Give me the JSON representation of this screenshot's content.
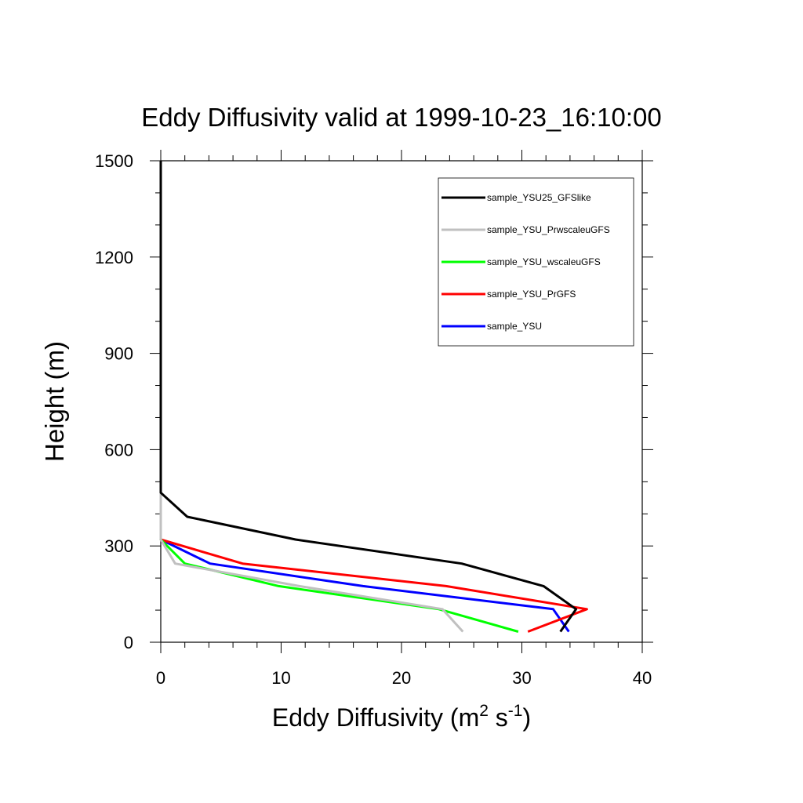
{
  "chart_data": {
    "type": "line",
    "title": "Eddy Diffusivity valid at 1999-10-23_16:10:00",
    "xlabel": {
      "base": "Eddy Diffusivity (m",
      "sup1": "2",
      "mid": " s",
      "sup2": "-1",
      "end": ")"
    },
    "ylabel": "Height (m)",
    "xlim": [
      0,
      40
    ],
    "ylim": [
      0,
      1500
    ],
    "xticks": [
      0,
      10,
      20,
      30,
      40
    ],
    "yticks": [
      0,
      300,
      600,
      900,
      1200,
      1500
    ],
    "x_tick_labels": [
      "0",
      "10",
      "20",
      "30",
      "40"
    ],
    "y_tick_labels": [
      "0",
      "300",
      "600",
      "900",
      "1200",
      "1500"
    ],
    "legend_position": "top-right",
    "series": [
      {
        "name": "sample_YSU25_GFSlike",
        "color": "#000000",
        "x": [
          33.2,
          34.5,
          31.8,
          25.0,
          11.2,
          2.2,
          0.0,
          0.0,
          0.0,
          0.0
        ],
        "y": [
          33,
          103,
          175,
          245,
          320,
          391,
          466,
          800,
          1200,
          1500
        ]
      },
      {
        "name": "sample_YSU_PrwscaleuGFS",
        "color": "#c0c0c0",
        "x": [
          25.1,
          23.4,
          11.5,
          1.2,
          0.0,
          0.0,
          0.0,
          0.0
        ],
        "y": [
          33,
          103,
          175,
          245,
          320,
          800,
          1200,
          1500
        ]
      },
      {
        "name": "sample_YSU_wscaleuGFS",
        "color": "#00ff00",
        "x": [
          29.7,
          23.1,
          9.8,
          2.0,
          0.0,
          0.0,
          0.0,
          0.0
        ],
        "y": [
          33,
          103,
          175,
          245,
          320,
          800,
          1200,
          1500
        ]
      },
      {
        "name": "sample_YSU_PrGFS",
        "color": "#ff0000",
        "x": [
          30.5,
          35.4,
          23.7,
          6.8,
          0.0,
          0.0,
          0.0,
          0.0
        ],
        "y": [
          33,
          103,
          175,
          245,
          320,
          800,
          1200,
          1500
        ]
      },
      {
        "name": "sample_YSU",
        "color": "#0000ff",
        "x": [
          33.9,
          32.6,
          16.8,
          4.1,
          0.0,
          0.0,
          0.0,
          0.0
        ],
        "y": [
          33,
          103,
          175,
          245,
          320,
          800,
          1200,
          1500
        ]
      }
    ]
  }
}
